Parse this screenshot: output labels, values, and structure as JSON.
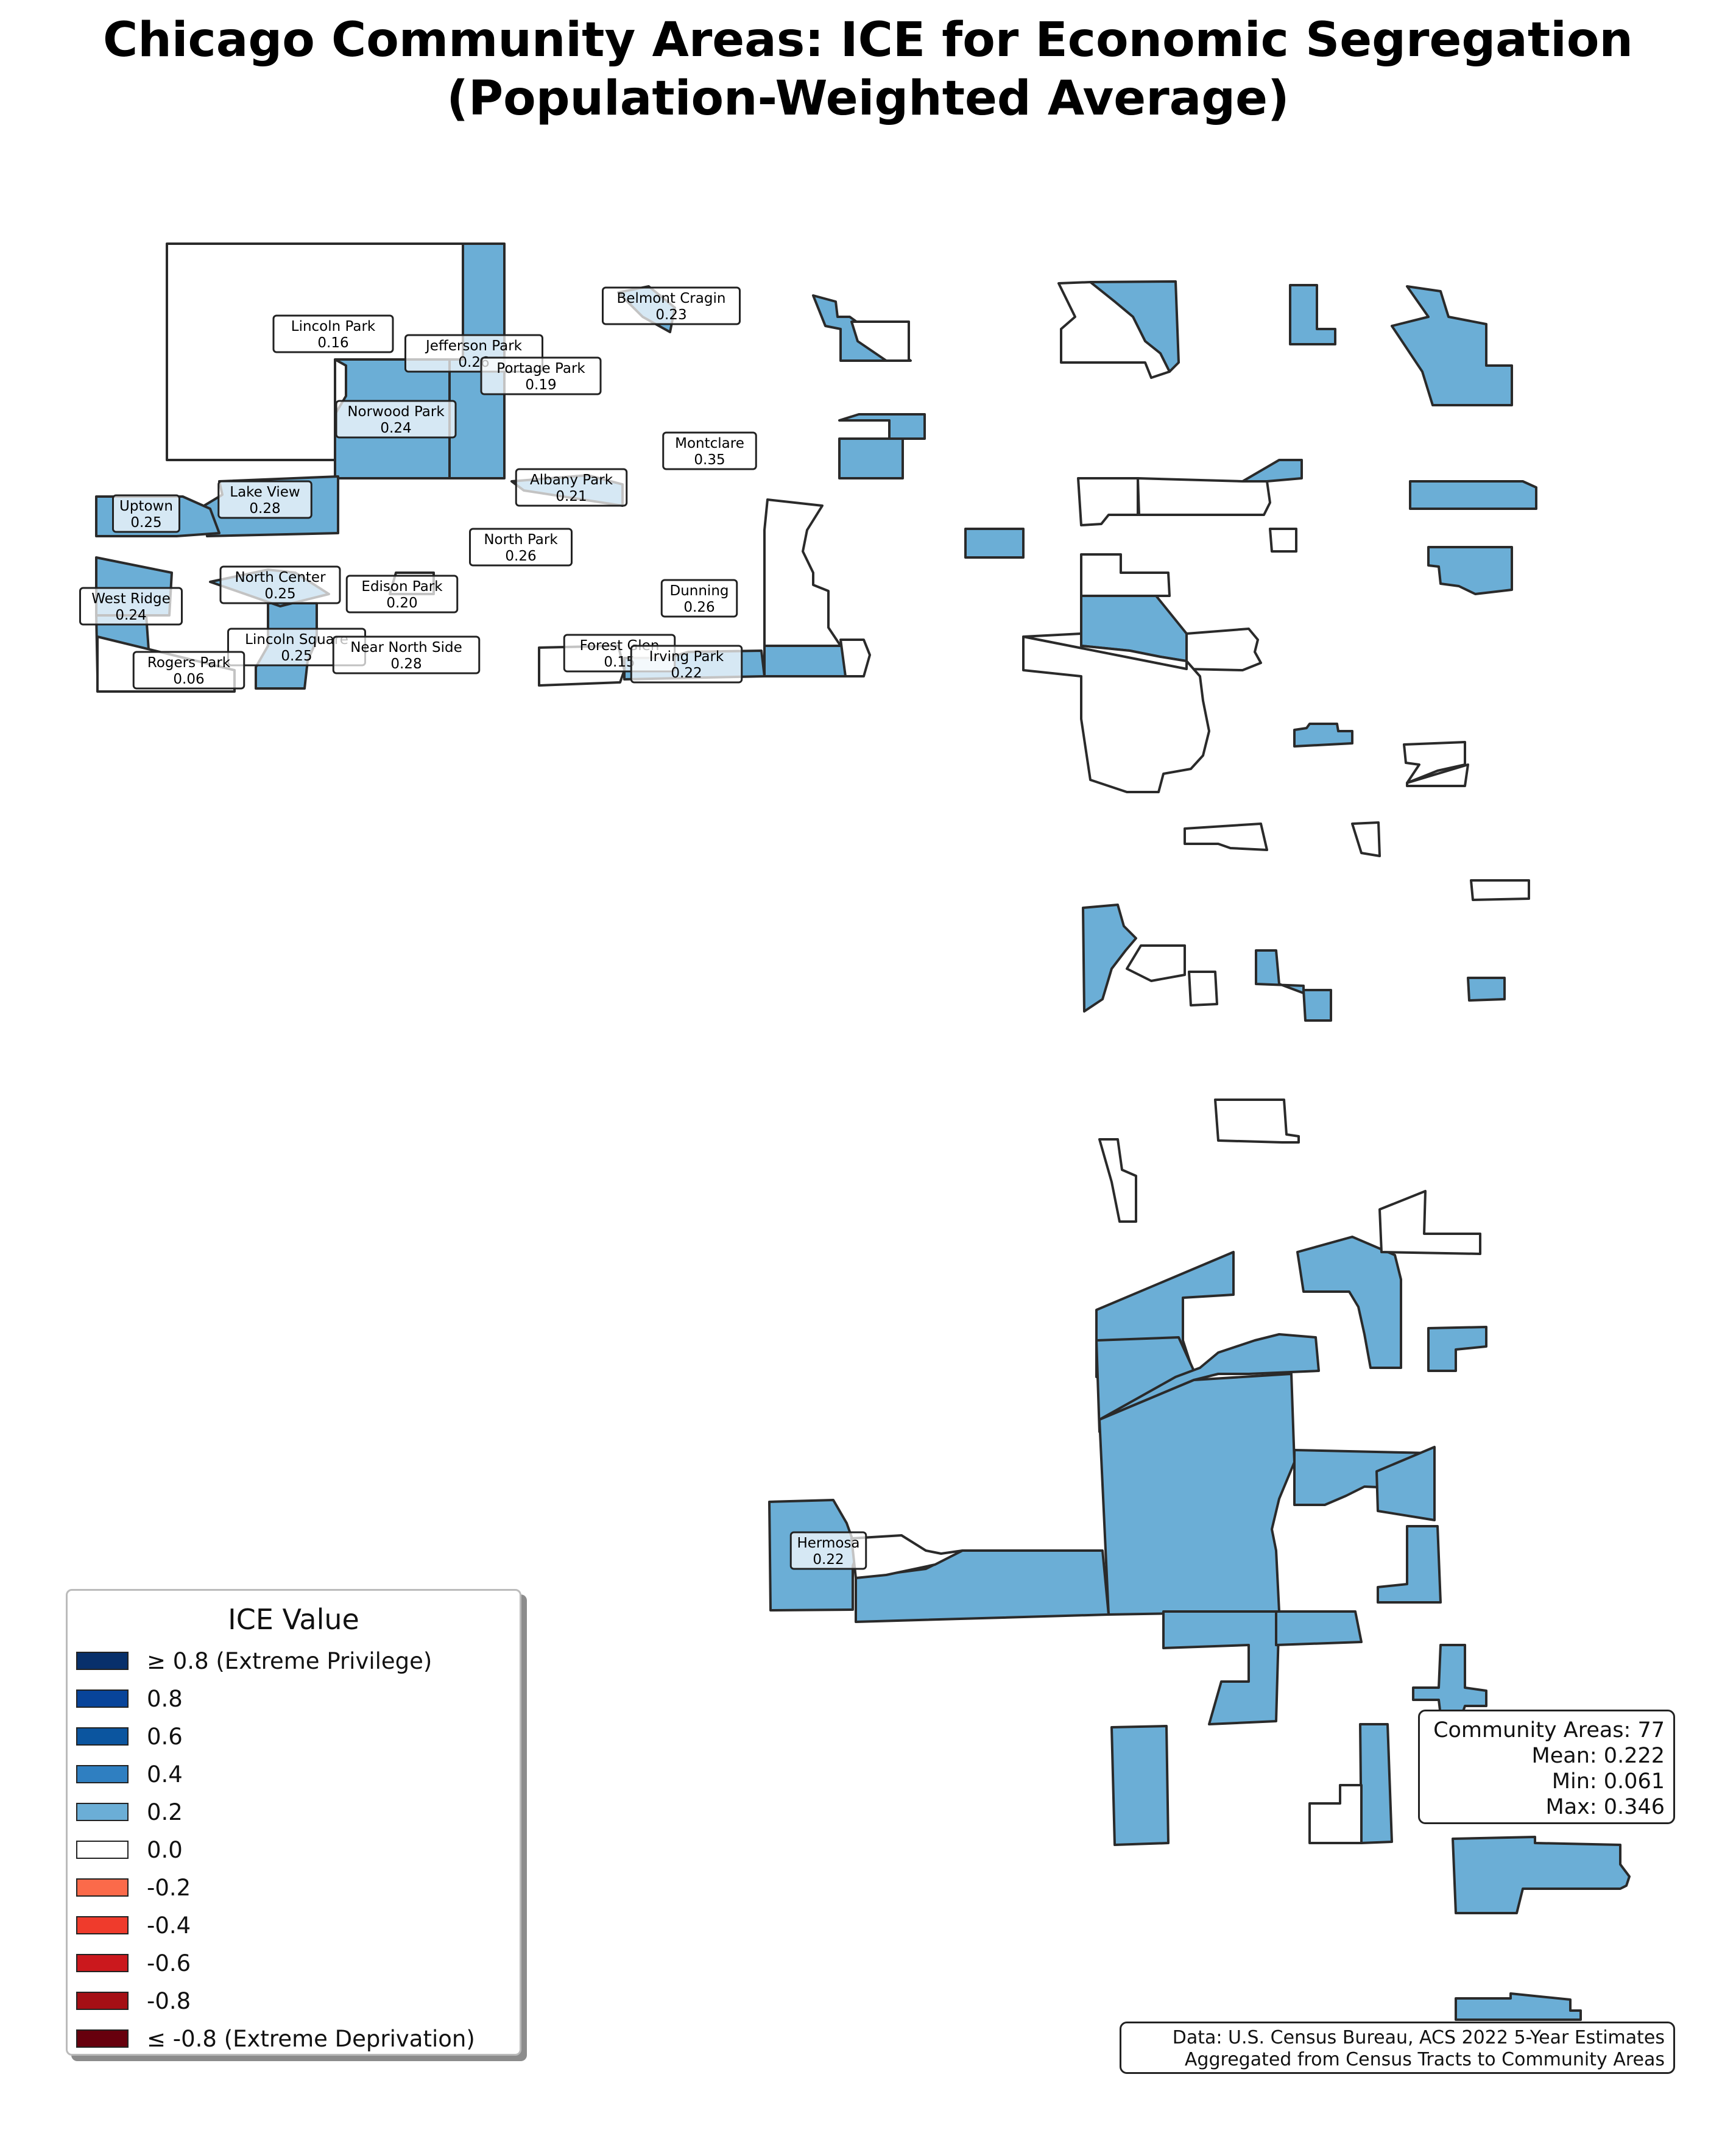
{
  "title": {
    "line1": "Chicago Community Areas: ICE for Economic Segregation",
    "line2": "(Population-Weighted Average)"
  },
  "colors": {
    "fill_0_2": "#6baed6",
    "fill_0_0": "#ffffff",
    "label_fill": "#d5e7f3",
    "outline": "#2a2a2a"
  },
  "labels": [
    {
      "name": "Lincoln Park",
      "value": "0.16"
    },
    {
      "name": "Jefferson Park",
      "value": "0.26"
    },
    {
      "name": "Portage Park",
      "value": "0.19"
    },
    {
      "name": "Belmont Cragin",
      "value": "0.23"
    },
    {
      "name": "Norwood Park",
      "value": "0.24"
    },
    {
      "name": "Montclare",
      "value": "0.35"
    },
    {
      "name": "Albany Park",
      "value": "0.21"
    },
    {
      "name": "Lake View",
      "value": "0.28"
    },
    {
      "name": "Uptown",
      "value": "0.25"
    },
    {
      "name": "North Park",
      "value": "0.26"
    },
    {
      "name": "North Center",
      "value": "0.25"
    },
    {
      "name": "Edison Park",
      "value": "0.20"
    },
    {
      "name": "Dunning",
      "value": "0.26"
    },
    {
      "name": "West Ridge",
      "value": "0.24"
    },
    {
      "name": "Lincoln Square",
      "value": "0.25"
    },
    {
      "name": "Near North Side",
      "value": "0.28"
    },
    {
      "name": "Forest Glen",
      "value": "0.15"
    },
    {
      "name": "Irving Park",
      "value": "0.22"
    },
    {
      "name": "Rogers Park",
      "value": "0.06"
    },
    {
      "name": "Hermosa",
      "value": "0.22"
    }
  ],
  "legend": {
    "title": "ICE Value",
    "items": [
      {
        "label": "≥ 0.8 (Extreme Privilege)",
        "color": "#08306b"
      },
      {
        "label": "0.8",
        "color": "#08449a"
      },
      {
        "label": "0.6",
        "color": "#0b559f"
      },
      {
        "label": "0.4",
        "color": "#2f7fc1"
      },
      {
        "label": "0.2",
        "color": "#6baed6"
      },
      {
        "label": "0.0",
        "color": "#ffffff"
      },
      {
        "label": "-0.2",
        "color": "#fb6a4a"
      },
      {
        "label": "-0.4",
        "color": "#ef3b2c"
      },
      {
        "label": "-0.6",
        "color": "#cb181d"
      },
      {
        "label": "-0.8",
        "color": "#a50f15"
      },
      {
        "label": "≤ -0.8 (Extreme Deprivation)",
        "color": "#67000d"
      }
    ]
  },
  "stats": {
    "count": "Community Areas: 77",
    "mean": "Mean: 0.222",
    "min": "Min: 0.061",
    "max": "Max: 0.346"
  },
  "source": {
    "line1": "Data: U.S. Census Bureau, ACS 2022 5-Year Estimates",
    "line2": "Aggregated from Census Tracts to Community Areas"
  }
}
